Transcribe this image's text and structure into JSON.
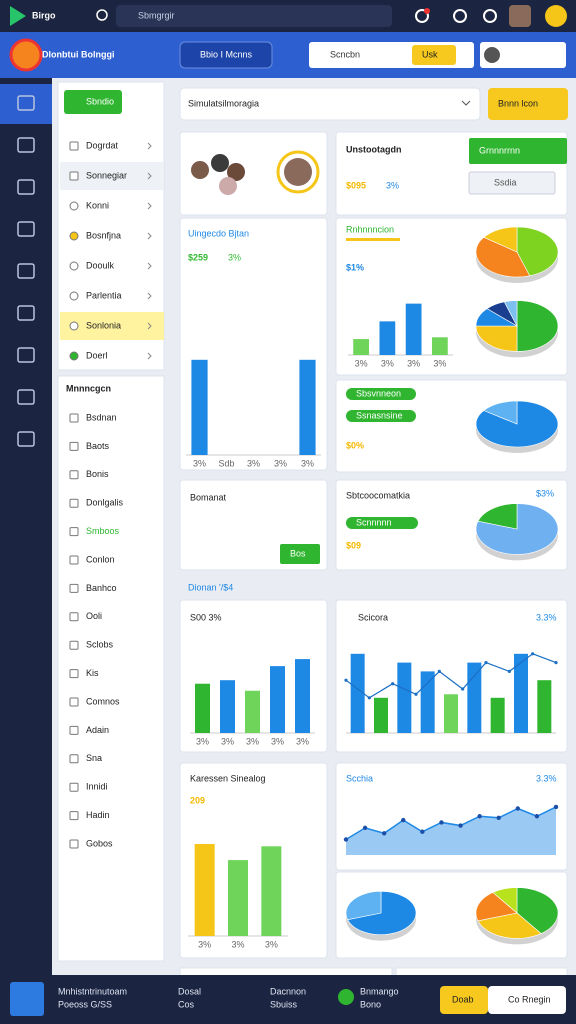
{
  "topbar": {
    "brand": "Birgo",
    "search": "Sbmgrgir"
  },
  "header": {
    "title": "Dlonbtui Bolnggi",
    "menu": "Bbio I Mcnns",
    "search": "Scncbn",
    "action": "Usk"
  },
  "sidebar": {
    "button": "Sbndio",
    "items": [
      "Dogrdat",
      "Sonnegiar",
      "Konni",
      "Bosnfjna",
      "Dooulk",
      "Parlentia",
      "Sonlonia",
      "Doerl"
    ],
    "section": "Mnnncgcn",
    "items2": [
      "Bsdnan",
      "Baots",
      "Bonis",
      "Donlgalis",
      "Smboos",
      "Conlon",
      "Banhco",
      "Ooli",
      "Sclobs",
      "Kis",
      "Comnos",
      "Adain",
      "Sna",
      "Innidi",
      "Hadin",
      "Gobos"
    ]
  },
  "main": {
    "title": "Simulatsilmoragia",
    "action": "Bnnn lcon",
    "section": "Dionan '/$4"
  },
  "cards": [
    {
      "title": "Unstootagdn",
      "value": "$095",
      "pct": "3%",
      "button": "Grnnnrrnn",
      "select": "Ssdia"
    },
    {
      "title": "Uingecdo Bjtan",
      "value": "$259",
      "pct": "3%",
      "charts": [
        {
          "type": "bar",
          "categories": [
            "3%",
            "Sdb",
            "3%",
            "3%",
            "3%"
          ],
          "values": [
            85,
            null,
            null,
            null,
            85
          ],
          "color": "#1e88e5",
          "ylim": [
            0,
            100
          ]
        }
      ]
    },
    {
      "title": "Rnhnnncion",
      "value": "$1%",
      "charts": [
        {
          "type": "bar",
          "categories": [
            "3%",
            "3%",
            "3%",
            "3%"
          ],
          "values": [
            18,
            38,
            58,
            20
          ],
          "colors": [
            "#6fd45a",
            "#1e88e5",
            "#1e88e5",
            "#6fd45a"
          ],
          "ylim": [
            0,
            70
          ]
        },
        {
          "type": "pie",
          "values": [
            45,
            40,
            15
          ],
          "colors": [
            "#7ed321",
            "#f5841f",
            "#f5c518"
          ]
        },
        {
          "type": "pie",
          "values": [
            50,
            25,
            12,
            8,
            5
          ],
          "colors": [
            "#2fb52f",
            "#f5c518",
            "#1e88e5",
            "#1b3f8f",
            "#7cc0f0"
          ]
        }
      ]
    },
    {
      "pills": [
        "Sbsvnneon",
        "Ssnasnsine"
      ],
      "value": "$0%",
      "charts": [
        {
          "type": "pie",
          "values": [
            85,
            15
          ],
          "colors": [
            "#1e88e5",
            "#5fb2f2"
          ]
        }
      ]
    },
    {
      "title": "Bomanat",
      "button": "Bos"
    },
    {
      "title": "Sbtcoocomatkia",
      "pill": "Scnnnnn",
      "value": "$09",
      "pct": "$3%",
      "charts": [
        {
          "type": "pie",
          "values": [
            80,
            20
          ],
          "colors": [
            "#6fb0f0",
            "#2fb52f"
          ]
        }
      ]
    },
    {
      "title": "S00 3%",
      "charts": [
        {
          "type": "bar",
          "categories": [
            "3%",
            "3%",
            "3%",
            "3%",
            "3%"
          ],
          "values": [
            28,
            30,
            24,
            38,
            42
          ],
          "colors": [
            "#2fb52f",
            "#1e88e5",
            "#6fd45a",
            "#1e88e5",
            "#1e88e5"
          ],
          "ylim": [
            0,
            50
          ]
        }
      ]
    },
    {
      "title": "Scicora",
      "pct": "3.3%",
      "charts": [
        {
          "type": "combo",
          "values": [
            45,
            20,
            40,
            35,
            22,
            40,
            20,
            45,
            30
          ],
          "colors": [
            "#1e88e5",
            "#2fb52f",
            "#1e88e5",
            "#1e88e5",
            "#6fd45a",
            "#1e88e5",
            "#2fb52f",
            "#1e88e5",
            "#2fb52f"
          ],
          "line": [
            30,
            20,
            28,
            22,
            35,
            25,
            40,
            35,
            45,
            40
          ],
          "line_color": "#1b6fc4",
          "ylim": [
            0,
            50
          ]
        }
      ]
    },
    {
      "title": "Karessen Sinealog",
      "value": "209",
      "charts": [
        {
          "type": "bar",
          "categories": [
            "3%",
            "3%",
            "3%"
          ],
          "values": [
            80,
            66,
            78
          ],
          "colors": [
            "#f5c518",
            "#6fd45a",
            "#6fd45a"
          ],
          "ylim": [
            0,
            100
          ]
        }
      ]
    },
    {
      "title": "Scchia",
      "pct": "3.3%",
      "charts": [
        {
          "type": "area",
          "values": [
            20,
            35,
            28,
            45,
            30,
            42,
            38,
            50,
            48,
            60,
            50,
            62
          ],
          "color": "#1e88e5",
          "ylim": [
            0,
            80
          ]
        }
      ]
    },
    {
      "charts": [
        {
          "type": "pie",
          "values": [
            70,
            30
          ],
          "colors": [
            "#1e88e5",
            "#5fb2f2"
          ]
        },
        {
          "type": "pie",
          "values": [
            40,
            30,
            20,
            10
          ],
          "colors": [
            "#2fb52f",
            "#f5c518",
            "#f5841f",
            "#b9e21e"
          ]
        }
      ]
    }
  ],
  "footer": {
    "items": [
      "Mnhistntrinutoam",
      "Poeoss G/SS",
      "Dosal",
      "Cos",
      "Dacnnon",
      "Sbuiss",
      "Bnmango",
      "Bono"
    ],
    "buttons": [
      "Doab",
      "Co Rnegin"
    ]
  }
}
